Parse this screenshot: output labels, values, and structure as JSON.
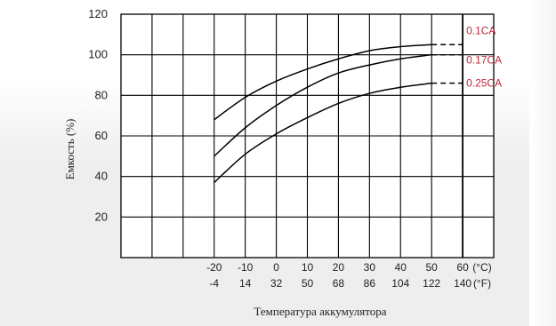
{
  "chart_data": {
    "type": "line",
    "ylabel": "Емкость (%)",
    "xlabel": "Температура аккумулятора",
    "x_unit_c": "(°C)",
    "x_unit_f": "(°F)",
    "ylim": [
      0,
      120
    ],
    "xlim": [
      -50,
      70
    ],
    "yticks": [
      "120",
      "100",
      "80",
      "60",
      "40",
      "20"
    ],
    "yticks_values": [
      120,
      100,
      80,
      60,
      40,
      20
    ],
    "xticks_c": [
      "-20",
      "-10",
      "0",
      "10",
      "20",
      "30",
      "40",
      "50",
      "60"
    ],
    "xticks_f": [
      "-4",
      "14",
      "32",
      "50",
      "68",
      "86",
      "104",
      "122",
      "140"
    ],
    "xticks_values": [
      -20,
      -10,
      0,
      10,
      20,
      30,
      40,
      50,
      60
    ],
    "grid": true,
    "series": [
      {
        "name": "0.1CA",
        "color": "#c0283c",
        "x": [
          -20,
          -10,
          0,
          10,
          20,
          30,
          40,
          50
        ],
        "y": [
          68,
          79,
          87,
          93,
          98,
          102,
          104,
          105
        ],
        "dashed_x": [
          50,
          60
        ],
        "dashed_y": [
          105,
          105
        ]
      },
      {
        "name": "0.17CA",
        "color": "#c0283c",
        "x": [
          -20,
          -10,
          0,
          10,
          20,
          30,
          40,
          50
        ],
        "y": [
          50,
          64,
          75,
          84,
          91,
          95,
          98,
          100
        ],
        "dashed_x": [
          50,
          60
        ],
        "dashed_y": [
          100,
          100
        ]
      },
      {
        "name": "0.25CA",
        "color": "#c0283c",
        "x": [
          -20,
          -10,
          0,
          10,
          20,
          30,
          40,
          50
        ],
        "y": [
          37,
          51,
          61,
          69,
          76,
          81,
          84,
          86
        ],
        "dashed_x": [
          50,
          60
        ],
        "dashed_y": [
          86,
          86
        ]
      }
    ]
  }
}
